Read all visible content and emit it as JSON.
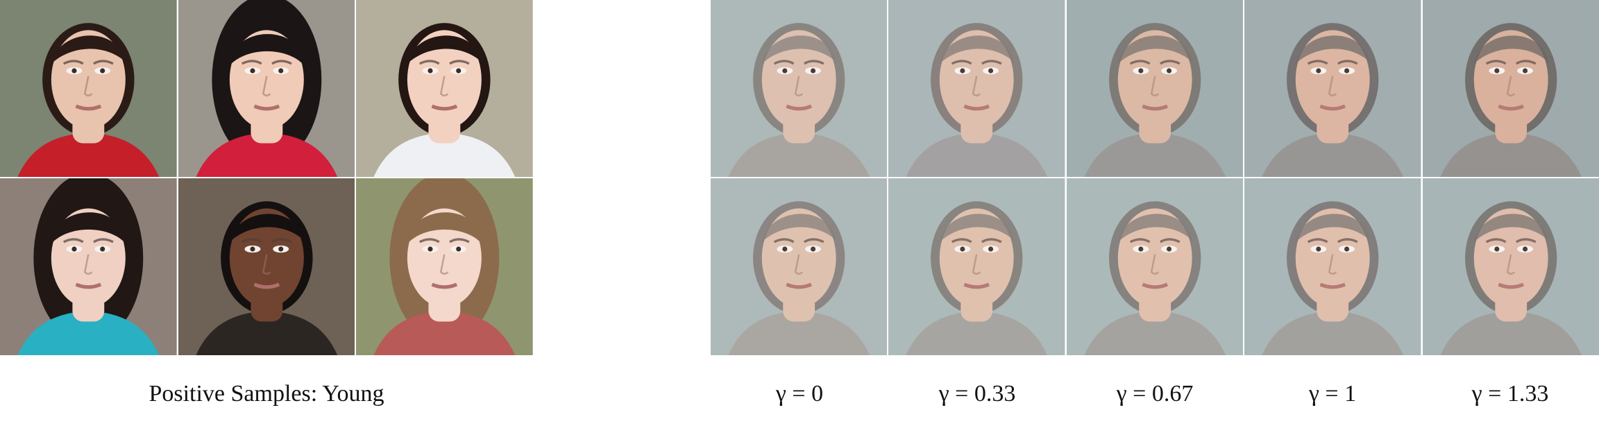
{
  "left_panel": {
    "caption": "Positive Samples: Young",
    "tiles": [
      {
        "subject": "young boy portrait",
        "bg": "#7c8472",
        "skin": "#e8c3ae",
        "hair": "#2b1b16",
        "shirt": "#c51f2a",
        "hair_style": "short"
      },
      {
        "subject": "asian girl portrait",
        "bg": "#9a968d",
        "skin": "#f0cbb7",
        "hair": "#1b1615",
        "shirt": "#d21f3c",
        "hair_style": "long"
      },
      {
        "subject": "young boy outdoor portrait",
        "bg": "#b4ae9c",
        "skin": "#f3d1c0",
        "hair": "#241612",
        "shirt": "#eef0f4",
        "hair_style": "short"
      },
      {
        "subject": "girl portrait",
        "bg": "#8d8078",
        "skin": "#efd0c2",
        "hair": "#211715",
        "shirt": "#29b0c3",
        "hair_style": "long"
      },
      {
        "subject": "young man portrait",
        "bg": "#6d6255",
        "skin": "#704431",
        "hair": "#141010",
        "shirt": "#2b2622",
        "hair_style": "short"
      },
      {
        "subject": "blonde girl portrait",
        "bg": "#8f956f",
        "skin": "#f3d8cb",
        "hair": "#8b6b4b",
        "shirt": "#b85a58",
        "hair_style": "long"
      }
    ]
  },
  "right_panel": {
    "gamma_labels": [
      "γ = 0",
      "γ = 0.33",
      "γ = 0.67",
      "γ = 1",
      "γ = 1.33"
    ],
    "rows": [
      [
        {
          "bg": "#a7b2b4",
          "skin": "#dbbbaa",
          "hair": "#7b7571",
          "shadow": "#9b857b"
        },
        {
          "bg": "#a3b0b2",
          "skin": "#dcb9a7",
          "hair": "#7a716c",
          "shadow": "#94807a"
        },
        {
          "bg": "#9aa8aa",
          "skin": "#d8b39e",
          "hair": "#6f6864",
          "shadow": "#8c766e"
        },
        {
          "bg": "#9aa6a8",
          "skin": "#d9b09b",
          "hair": "#66605d",
          "shadow": "#86706a"
        },
        {
          "bg": "#96a3a5",
          "skin": "#d6ab95",
          "hair": "#605b58",
          "shadow": "#836a63"
        }
      ],
      [
        {
          "bg": "#a8b3b5",
          "skin": "#dcbda9",
          "hair": "#7d7672",
          "shadow": "#9d877b"
        },
        {
          "bg": "#a7b5b5",
          "skin": "#ddbca8",
          "hair": "#7a7470",
          "shadow": "#998378"
        },
        {
          "bg": "#a5b3b3",
          "skin": "#dfbca8",
          "hair": "#77716e",
          "shadow": "#968076"
        },
        {
          "bg": "#a2b1b2",
          "skin": "#dfbaa7",
          "hair": "#726d6a",
          "shadow": "#927c73"
        },
        {
          "bg": "#a0afb0",
          "skin": "#deb8a5",
          "hair": "#6f6a67",
          "shadow": "#8f7970"
        }
      ]
    ]
  },
  "colors": {
    "page_bg": "#ffffff",
    "caption_text": "#111111"
  }
}
